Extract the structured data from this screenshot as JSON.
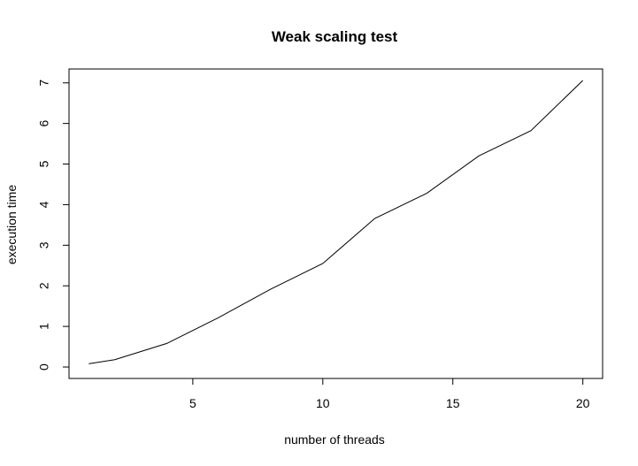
{
  "chart_data": {
    "type": "line",
    "title": "Weak scaling test",
    "xlabel": "number of threads",
    "ylabel": "execution time",
    "x": [
      1,
      2,
      4,
      6,
      8,
      10,
      12,
      14,
      16,
      18,
      20
    ],
    "series": [
      {
        "values": [
          0.08,
          0.18,
          0.58,
          1.22,
          1.92,
          2.55,
          3.66,
          4.28,
          5.2,
          5.82,
          7.06
        ]
      }
    ],
    "xlim": [
      0.24,
      20.76
    ],
    "ylim": [
      -0.2824,
      7.3424
    ],
    "xticks": [
      5,
      10,
      15,
      20
    ],
    "yticks": [
      0,
      1,
      2,
      3,
      4,
      5,
      6,
      7
    ],
    "grid": false,
    "line_color": "#000000"
  }
}
